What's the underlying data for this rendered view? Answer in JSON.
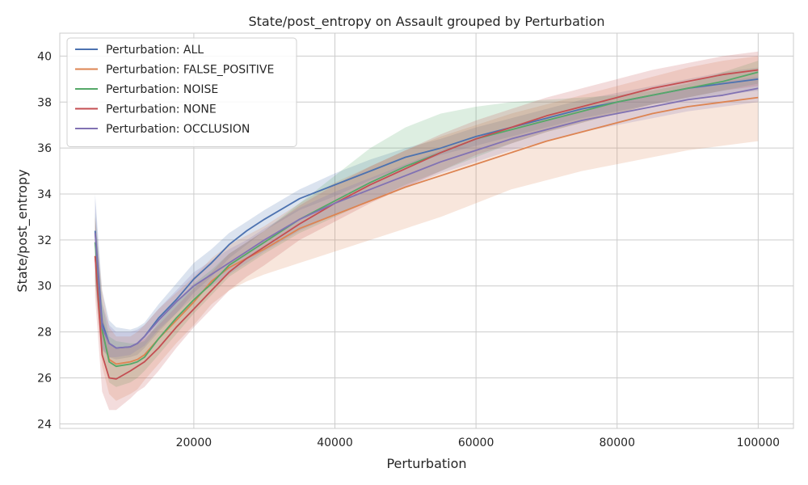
{
  "chart_data": {
    "type": "line",
    "title": "State/post_entropy on Assault grouped by Perturbation",
    "xlabel": "Perturbation",
    "ylabel": "State/post_entropy",
    "xlim": [
      1000,
      105000
    ],
    "ylim": [
      23.8,
      41.0
    ],
    "xticks": [
      20000,
      40000,
      60000,
      80000,
      100000
    ],
    "xtick_labels": [
      "20000",
      "40000",
      "60000",
      "80000",
      "100000"
    ],
    "yticks": [
      24,
      26,
      28,
      30,
      32,
      34,
      36,
      38,
      40
    ],
    "ytick_labels": [
      "24",
      "26",
      "28",
      "30",
      "32",
      "34",
      "36",
      "38",
      "40"
    ],
    "grid": true,
    "legend_position": "top-left",
    "x": [
      6000,
      7000,
      8000,
      9000,
      11000,
      12000,
      13000,
      15000,
      17500,
      20000,
      22500,
      25000,
      27500,
      30000,
      35000,
      40000,
      45000,
      50000,
      55000,
      60000,
      65000,
      70000,
      75000,
      80000,
      85000,
      90000,
      95000,
      100000
    ],
    "series": [
      {
        "name": "Perturbation: ALL",
        "color": "#4c72b0",
        "values": [
          32.4,
          28.4,
          27.5,
          27.3,
          27.35,
          27.5,
          27.8,
          28.6,
          29.4,
          30.3,
          31.0,
          31.8,
          32.4,
          32.9,
          33.8,
          34.4,
          35.0,
          35.6,
          36.0,
          36.5,
          36.9,
          37.3,
          37.7,
          38.0,
          38.3,
          38.6,
          38.8,
          39.0
        ],
        "lower": [
          30.2,
          27.2,
          26.9,
          26.8,
          26.9,
          27.0,
          27.3,
          28.0,
          28.8,
          29.7,
          30.4,
          31.2,
          31.8,
          32.4,
          33.3,
          33.9,
          34.6,
          35.2,
          35.7,
          36.1,
          36.5,
          36.9,
          37.3,
          37.6,
          37.9,
          38.1,
          38.3,
          38.5
        ],
        "upper": [
          34.0,
          29.8,
          28.5,
          28.2,
          28.1,
          28.2,
          28.4,
          29.2,
          30.1,
          31.0,
          31.6,
          32.3,
          32.8,
          33.3,
          34.2,
          34.9,
          35.5,
          36.0,
          36.4,
          36.9,
          37.3,
          37.7,
          38.1,
          38.4,
          38.7,
          39.0,
          39.3,
          39.5
        ]
      },
      {
        "name": "Perturbation: FALSE_POSITIVE",
        "color": "#dd8452",
        "values": [
          31.3,
          28.0,
          26.8,
          26.6,
          26.7,
          26.8,
          27.0,
          27.7,
          28.5,
          29.3,
          30.2,
          30.8,
          31.2,
          31.6,
          32.5,
          33.1,
          33.7,
          34.3,
          34.8,
          35.3,
          35.8,
          36.3,
          36.7,
          37.1,
          37.5,
          37.8,
          38.0,
          38.2
        ],
        "lower": [
          30.0,
          26.5,
          25.3,
          25.0,
          25.3,
          25.5,
          25.9,
          26.6,
          27.5,
          28.3,
          29.2,
          29.8,
          30.2,
          30.5,
          31.0,
          31.5,
          32.0,
          32.5,
          33.0,
          33.6,
          34.2,
          34.6,
          35.0,
          35.3,
          35.6,
          35.9,
          36.1,
          36.3
        ],
        "upper": [
          33.0,
          29.8,
          28.2,
          27.8,
          27.8,
          28.0,
          28.3,
          29.0,
          29.7,
          30.4,
          31.2,
          31.8,
          32.2,
          32.6,
          33.6,
          34.5,
          35.2,
          35.9,
          36.5,
          37.0,
          37.5,
          37.9,
          38.3,
          38.7,
          39.1,
          39.5,
          39.8,
          40.0
        ]
      },
      {
        "name": "Perturbation: NOISE",
        "color": "#55a868",
        "values": [
          31.9,
          28.1,
          26.7,
          26.5,
          26.6,
          26.7,
          26.9,
          27.7,
          28.6,
          29.4,
          30.1,
          30.9,
          31.4,
          31.9,
          32.9,
          33.7,
          34.5,
          35.2,
          35.8,
          36.4,
          36.8,
          37.2,
          37.6,
          38.0,
          38.3,
          38.6,
          38.9,
          39.3
        ],
        "lower": [
          30.3,
          27.0,
          25.8,
          25.6,
          25.8,
          26.0,
          26.3,
          27.0,
          27.9,
          28.8,
          29.6,
          30.4,
          30.9,
          31.4,
          32.3,
          33.0,
          33.7,
          34.4,
          35.0,
          35.6,
          36.2,
          36.7,
          37.1,
          37.5,
          37.9,
          38.2,
          38.5,
          38.8
        ],
        "upper": [
          33.2,
          29.3,
          27.8,
          27.6,
          27.5,
          27.5,
          27.6,
          28.4,
          29.3,
          30.1,
          30.7,
          31.4,
          31.9,
          32.4,
          33.6,
          34.8,
          36.0,
          36.9,
          37.5,
          37.8,
          38.0,
          38.1,
          38.2,
          38.3,
          38.5,
          38.8,
          39.3,
          39.8
        ]
      },
      {
        "name": "Perturbation: NONE",
        "color": "#c44e52",
        "values": [
          31.3,
          27.0,
          26.0,
          25.95,
          26.3,
          26.5,
          26.7,
          27.3,
          28.2,
          29.0,
          29.8,
          30.6,
          31.2,
          31.7,
          32.7,
          33.6,
          34.4,
          35.1,
          35.8,
          36.4,
          36.9,
          37.4,
          37.8,
          38.2,
          38.6,
          38.9,
          39.2,
          39.4
        ],
        "lower": [
          29.5,
          25.4,
          24.6,
          24.6,
          25.1,
          25.4,
          25.6,
          26.3,
          27.3,
          28.2,
          29.0,
          29.8,
          30.4,
          30.9,
          32.0,
          32.8,
          33.6,
          34.3,
          35.0,
          35.7,
          36.2,
          36.7,
          37.1,
          37.5,
          37.9,
          38.2,
          38.5,
          38.7
        ],
        "upper": [
          33.0,
          28.8,
          27.5,
          27.3,
          27.4,
          27.5,
          27.7,
          28.3,
          29.1,
          29.9,
          30.6,
          31.4,
          31.9,
          32.4,
          33.5,
          34.4,
          35.2,
          35.9,
          36.6,
          37.2,
          37.7,
          38.2,
          38.6,
          39.0,
          39.4,
          39.7,
          40.0,
          40.2
        ]
      },
      {
        "name": "Perturbation: OCCLUSION",
        "color": "#8172b3",
        "values": [
          32.3,
          28.2,
          27.5,
          27.3,
          27.35,
          27.5,
          27.8,
          28.5,
          29.3,
          30.0,
          30.5,
          31.0,
          31.5,
          32.0,
          32.9,
          33.6,
          34.2,
          34.8,
          35.4,
          35.9,
          36.4,
          36.8,
          37.2,
          37.5,
          37.8,
          38.1,
          38.3,
          38.6
        ],
        "lower": [
          30.8,
          27.3,
          26.9,
          26.9,
          27.0,
          27.2,
          27.4,
          28.1,
          28.8,
          29.5,
          30.0,
          30.5,
          31.0,
          31.5,
          32.4,
          33.1,
          33.7,
          34.3,
          34.9,
          35.4,
          35.9,
          36.3,
          36.7,
          37.0,
          37.3,
          37.6,
          37.8,
          38.0
        ],
        "upper": [
          33.8,
          29.2,
          28.3,
          28.0,
          28.0,
          28.1,
          28.3,
          29.0,
          29.8,
          30.6,
          31.1,
          31.6,
          32.0,
          32.5,
          33.4,
          34.1,
          34.7,
          35.3,
          35.9,
          36.4,
          36.8,
          37.2,
          37.6,
          38.0,
          38.3,
          38.6,
          38.9,
          39.1
        ]
      }
    ]
  }
}
